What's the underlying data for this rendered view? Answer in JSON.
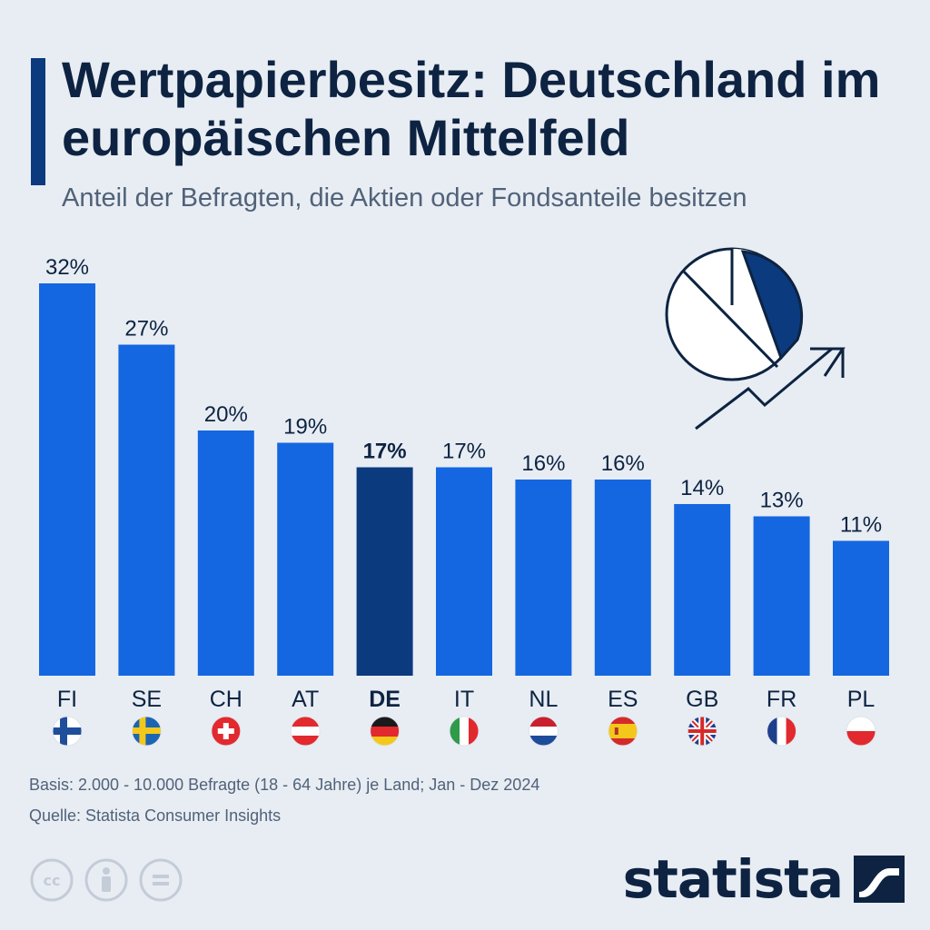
{
  "header": {
    "title": "Wertpapierbesitz: Deutschland im europäischen Mittelfeld",
    "subtitle": "Anteil der Befragten, die Aktien oder Fondsanteile besitzen"
  },
  "chart_data": {
    "type": "bar",
    "title": "Wertpapierbesitz: Deutschland im europäischen Mittelfeld",
    "subtitle": "Anteil der Befragten, die Aktien oder Fondsanteile besitzen",
    "xlabel": "",
    "ylabel": "",
    "ylim": [
      0,
      32
    ],
    "grid": false,
    "categories": [
      "FI",
      "SE",
      "CH",
      "AT",
      "DE",
      "IT",
      "NL",
      "ES",
      "GB",
      "FR",
      "PL"
    ],
    "values": [
      32,
      27,
      20,
      19,
      17,
      17,
      16,
      16,
      14,
      13,
      11
    ],
    "value_labels": [
      "32%",
      "27%",
      "20%",
      "19%",
      "17%",
      "17%",
      "16%",
      "16%",
      "14%",
      "13%",
      "11%"
    ],
    "highlight": "DE",
    "colors": {
      "bar": "#1467e0",
      "highlight": "#0b3a7e"
    },
    "flags": [
      "flag-finland-icon",
      "flag-sweden-icon",
      "flag-switzerland-icon",
      "flag-austria-icon",
      "flag-germany-icon",
      "flag-italy-icon",
      "flag-netherlands-icon",
      "flag-spain-icon",
      "flag-united-kingdom-icon",
      "flag-france-icon",
      "flag-poland-icon"
    ]
  },
  "footer": {
    "basis": "Basis: 2.000 - 10.000 Befragte (18 - 64 Jahre) je Land; Jan - Dez 2024",
    "source": "Quelle: Statista Consumer Insights",
    "brand": "statista",
    "license_icons": [
      "cc-icon",
      "attribution-icon",
      "no-derivatives-icon"
    ]
  },
  "colors": {
    "background": "#e8edf4",
    "title": "#0d2341",
    "accent": "#0b3a7e",
    "bar": "#1467e0"
  }
}
